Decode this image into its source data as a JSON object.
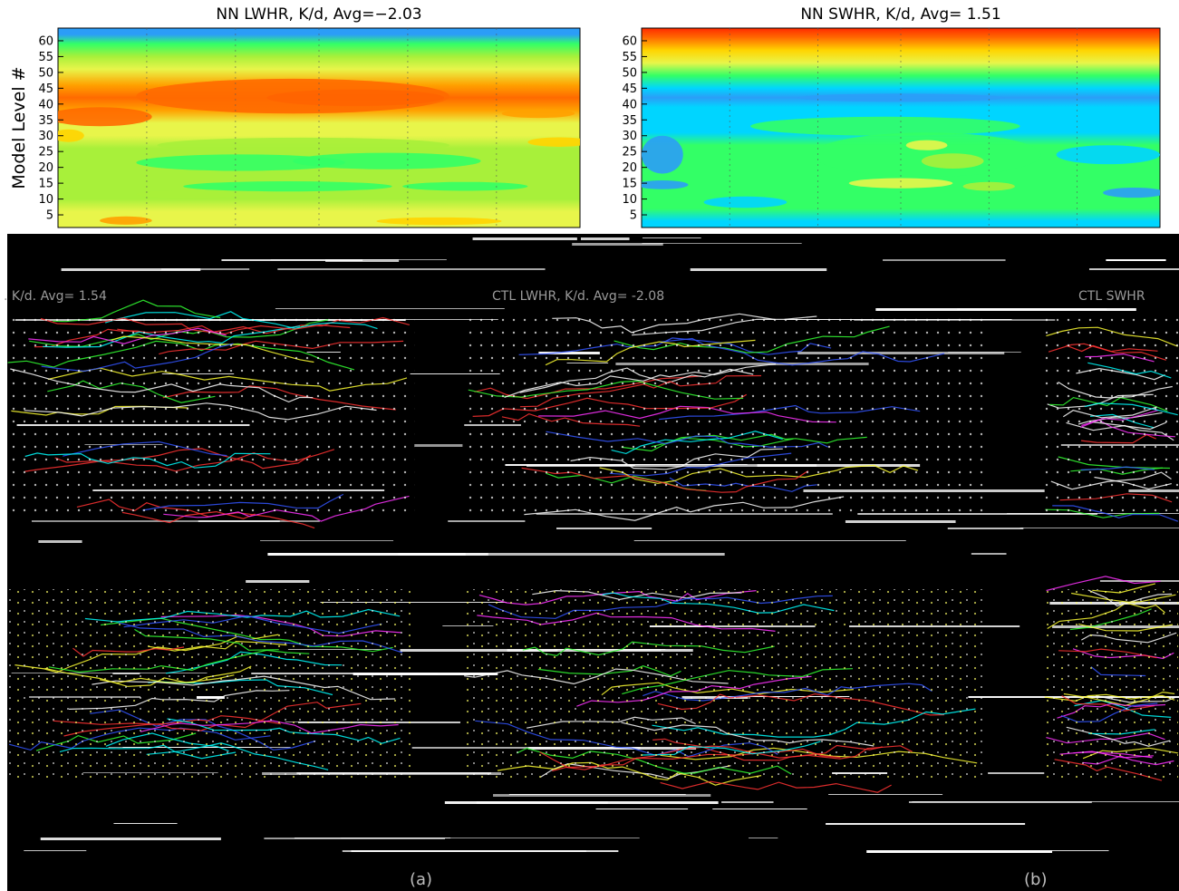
{
  "chart_data": [
    {
      "type": "heatmap",
      "title": "NN LWHR, K/d, Avg=−2.03",
      "ylabel": "Model Level #",
      "yticks": [
        5,
        10,
        15,
        20,
        25,
        30,
        35,
        40,
        45,
        50,
        55,
        60
      ],
      "ylim": [
        1,
        64
      ],
      "colormap": [
        "#2b9df7",
        "#00d5ff",
        "#33ff66",
        "#a8f03a",
        "#e8f54a",
        "#ffd400",
        "#ffa100",
        "#ff6a00",
        "#ff2a00"
      ],
      "vertical_profile": [
        {
          "level": 64,
          "value": -0.5
        },
        {
          "level": 62,
          "value": 0.3
        },
        {
          "level": 59,
          "value": 1.9
        },
        {
          "level": 55,
          "value": 3.3
        },
        {
          "level": 51,
          "value": 4.4
        },
        {
          "level": 46,
          "value": 6.2
        },
        {
          "level": 42,
          "value": 6.6
        },
        {
          "level": 38,
          "value": 6.0
        },
        {
          "level": 34,
          "value": 4.2
        },
        {
          "level": 30,
          "value": 3.6
        },
        {
          "level": 26,
          "value": 3.0
        },
        {
          "level": 22,
          "value": 3.3
        },
        {
          "level": 18,
          "value": 2.8
        },
        {
          "level": 14,
          "value": 2.6
        },
        {
          "level": 10,
          "value": 3.3
        },
        {
          "level": 6,
          "value": 3.7
        },
        {
          "level": 3,
          "value": 4.0
        },
        {
          "level": 1,
          "value": 4.2
        }
      ],
      "grid": true
    },
    {
      "type": "heatmap",
      "title": "NN SWHR, K/d, Avg= 1.51",
      "ylabel": "",
      "yticks": [
        5,
        10,
        15,
        20,
        25,
        30,
        35,
        40,
        45,
        50,
        55,
        60
      ],
      "ylim": [
        1,
        64
      ],
      "colormap": [
        "#2b9df7",
        "#00d5ff",
        "#33ff66",
        "#a8f03a",
        "#e8f54a",
        "#ffd400",
        "#ffa100",
        "#ff6a00",
        "#ff2a00"
      ],
      "vertical_profile": [
        {
          "level": 64,
          "value": 7.6
        },
        {
          "level": 61,
          "value": 6.6
        },
        {
          "level": 57,
          "value": 4.9
        },
        {
          "level": 53,
          "value": 3.6
        },
        {
          "level": 49,
          "value": 1.8
        },
        {
          "level": 45,
          "value": 1.0
        },
        {
          "level": 42,
          "value": 0.2
        },
        {
          "level": 39,
          "value": 0.6
        },
        {
          "level": 35,
          "value": 0.9
        },
        {
          "level": 31,
          "value": 1.3
        },
        {
          "level": 27,
          "value": 1.7
        },
        {
          "level": 23,
          "value": 2.0
        },
        {
          "level": 19,
          "value": 2.2
        },
        {
          "level": 15,
          "value": 2.4
        },
        {
          "level": 11,
          "value": 2.0
        },
        {
          "level": 7,
          "value": 1.5
        },
        {
          "level": 3,
          "value": 1.2
        },
        {
          "level": 1,
          "value": 1.1
        }
      ],
      "grid": true
    }
  ],
  "lower_panels": {
    "texts": [
      {
        "id": "ctl-swhr-left",
        "text": ". K/d. Avg= 1.54"
      },
      {
        "id": "ctl-lwhr",
        "text": "CTL LWHR, K/d. Avg= -2.08"
      },
      {
        "id": "ctl-swhr-right",
        "text": "CTL SWHR"
      }
    ],
    "panel_labels": [
      "(a)",
      "(b)"
    ]
  },
  "colors": {
    "background": "#ffffff",
    "corrupted_background": "#000000",
    "axis": "#000000"
  }
}
